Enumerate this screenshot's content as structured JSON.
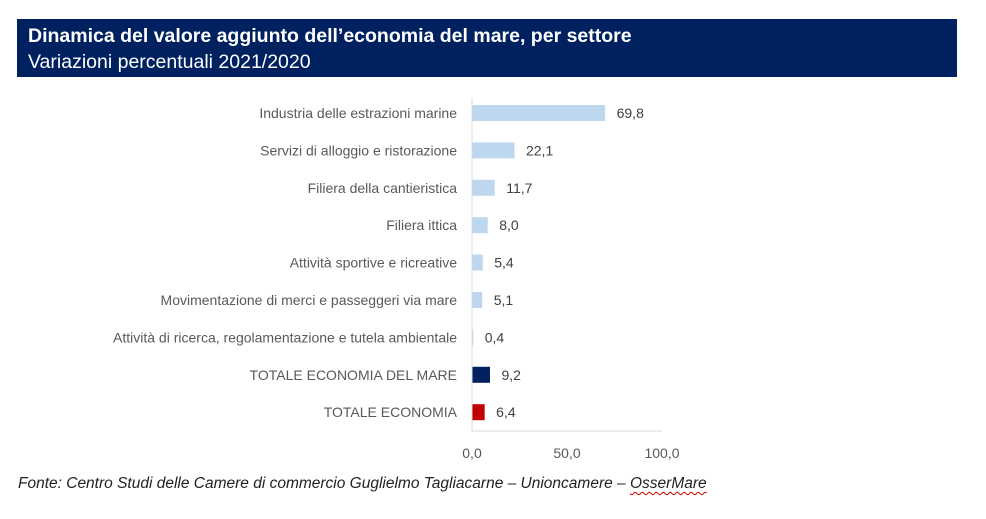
{
  "header": {
    "title": "Dinamica del valore aggiunto dell’economia del mare, per settore",
    "subtitle": "Variazioni percentuali 2021/2020"
  },
  "source": {
    "prefix": "Fonte: Centro Studi delle Camere di commercio Guglielmo Tagliacarne – Unioncamere – ",
    "highlighted": "OsserMare"
  },
  "chart_data": {
    "type": "bar",
    "orientation": "horizontal",
    "title": "Dinamica del valore aggiunto dell’economia del mare, per settore",
    "subtitle": "Variazioni percentuali 2021/2020",
    "xlabel": "",
    "ylabel": "",
    "xlim": [
      0,
      100
    ],
    "x_ticks": [
      0,
      50,
      100
    ],
    "x_tick_labels": [
      "0,0",
      "50,0",
      "100,0"
    ],
    "grid": false,
    "legend": "none",
    "categories": [
      "Industria delle estrazioni marine",
      "Servizi di alloggio e ristorazione",
      "Filiera della cantieristica",
      "Filiera ittica",
      "Attività sportive e ricreative",
      "Movimentazione di merci e passeggeri via mare",
      "Attività di ricerca, regolamentazione e tutela ambientale",
      "TOTALE ECONOMIA DEL MARE",
      "TOTALE ECONOMIA"
    ],
    "values": [
      69.8,
      22.1,
      11.7,
      8.0,
      5.4,
      5.1,
      0.4,
      9.2,
      6.4
    ],
    "value_labels": [
      "69,8",
      "22,1",
      "11,7",
      "8,0",
      "5,4",
      "5,1",
      "0,4",
      "9,2",
      "6,4"
    ],
    "bar_colors": [
      "#bdd7ee",
      "#bdd7ee",
      "#bdd7ee",
      "#bdd7ee",
      "#bdd7ee",
      "#bdd7ee",
      "#bdd7ee",
      "#00215f",
      "#c00000"
    ]
  }
}
